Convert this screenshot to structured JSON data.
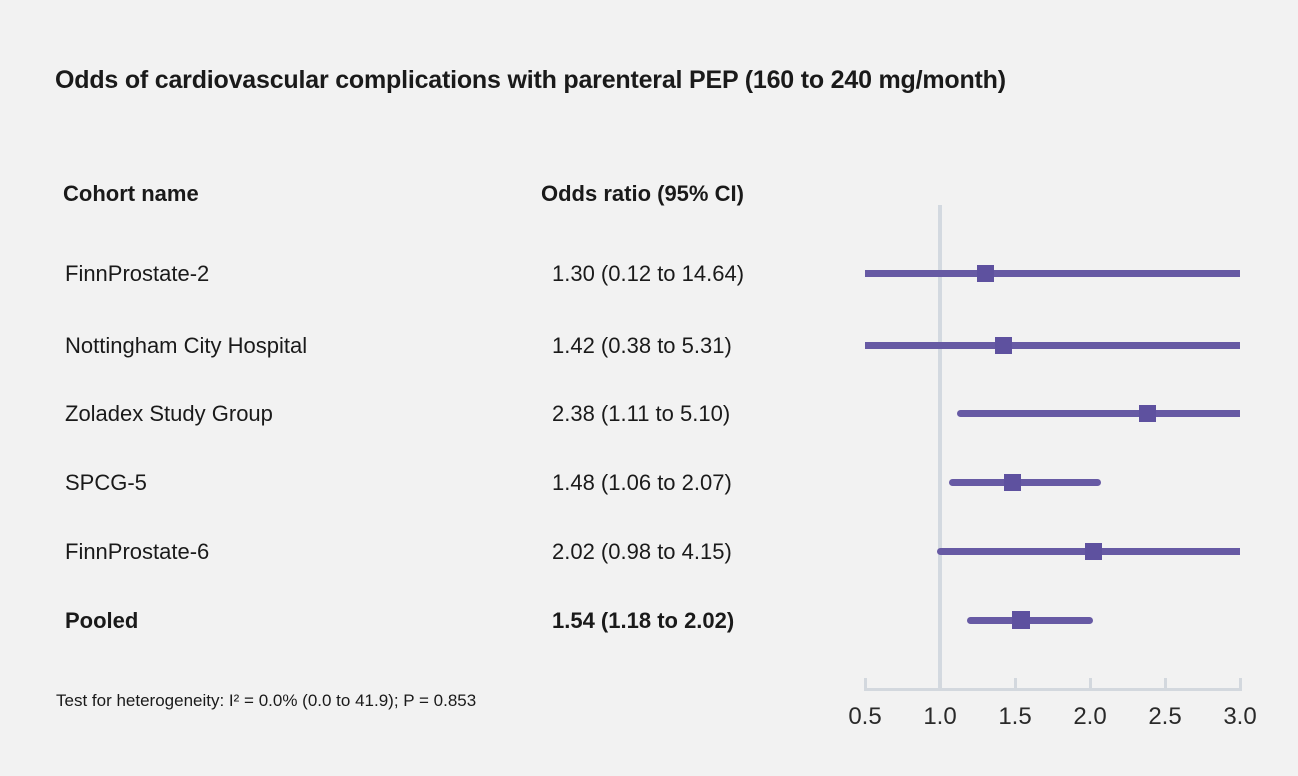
{
  "chart_data": {
    "type": "forest",
    "title": "Odds of cardiovascular complications with parenteral PEP (160 to 240 mg/month)",
    "columns": [
      "Cohort name",
      "Odds ratio (95% CI)"
    ],
    "rows": [
      {
        "label": "FinnProstate-2",
        "or_text": "1.30 (0.12 to 14.64)",
        "or": 1.3,
        "ci_low": 0.12,
        "ci_high": 14.64,
        "bold": false
      },
      {
        "label": "Nottingham City Hospital",
        "or_text": "1.42 (0.38 to 5.31)",
        "or": 1.42,
        "ci_low": 0.38,
        "ci_high": 5.31,
        "bold": false
      },
      {
        "label": "Zoladex Study Group",
        "or_text": "2.38 (1.11 to 5.10)",
        "or": 2.38,
        "ci_low": 1.11,
        "ci_high": 5.1,
        "bold": false
      },
      {
        "label": "SPCG-5",
        "or_text": "1.48 (1.06 to 2.07)",
        "or": 1.48,
        "ci_low": 1.06,
        "ci_high": 2.07,
        "bold": false
      },
      {
        "label": "FinnProstate-6",
        "or_text": "2.02 (0.98 to 4.15)",
        "or": 2.02,
        "ci_low": 0.98,
        "ci_high": 4.15,
        "bold": false
      },
      {
        "label": "Pooled",
        "or_text": "1.54 (1.18 to 2.02)",
        "or": 1.54,
        "ci_low": 1.18,
        "ci_high": 2.02,
        "bold": true
      }
    ],
    "axis": {
      "min": 0.5,
      "max": 3.0,
      "ref_line": 1.0,
      "tick_values": [
        0.5,
        1.0,
        1.5,
        2.0,
        2.5,
        3.0
      ],
      "tick_labels": [
        "0.5",
        "1.0",
        "1.5",
        "2.0",
        "2.5",
        "3.0"
      ]
    },
    "footnote": "Test for heterogeneity: I² = 0.0% (0.0 to 41.9); P = 0.853",
    "colors": {
      "background": "#f2f2f2",
      "text": "#1a1a1a",
      "ci_line": "#675aa4",
      "marker": "#5e519f",
      "reference_line": "#d3d9e0",
      "axis": "#d3d8de"
    }
  }
}
